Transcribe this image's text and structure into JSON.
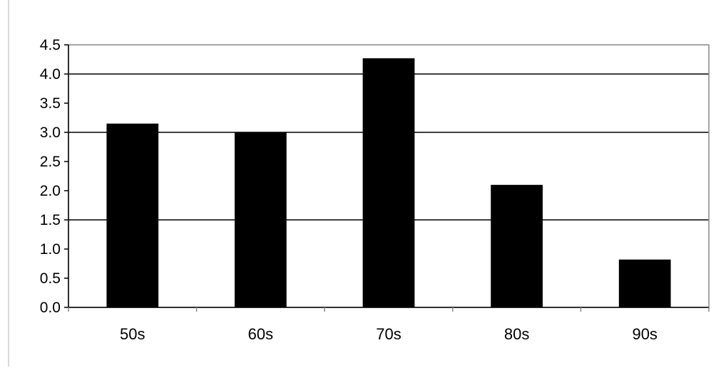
{
  "chart_data": {
    "type": "bar",
    "title": "",
    "xlabel": "",
    "ylabel": "",
    "categories": [
      "50s",
      "60s",
      "70s",
      "80s",
      "90s"
    ],
    "series": [
      {
        "values": [
          3.15,
          3.0,
          4.27,
          2.1,
          0.82
        ]
      }
    ],
    "ylim": [
      0,
      4.5
    ],
    "yticks": [
      0.0,
      0.5,
      1.0,
      1.5,
      2.0,
      2.5,
      3.0,
      3.5,
      4.0,
      4.5
    ],
    "ytick_labels": [
      "0.0",
      "0.5",
      "1.0",
      "1.5",
      "2.0",
      "2.5",
      "3.0",
      "3.5",
      "4.0",
      "4.5"
    ],
    "gridlines_at": [
      1.5,
      3.0,
      4.0
    ],
    "grid": true,
    "legend": "none",
    "colors": {
      "bar": "#000000",
      "frame": "#888888",
      "grid": "#000000",
      "axis": "#000000"
    }
  }
}
